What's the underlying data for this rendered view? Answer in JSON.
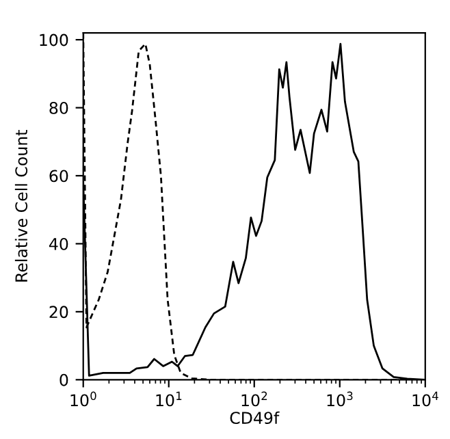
{
  "chart_data": {
    "type": "line",
    "xlabel": "CD49f",
    "ylabel": "Relative Cell Count",
    "log": "x",
    "grid": false,
    "legend": false,
    "marker": "none",
    "xlim": [
      1,
      10000
    ],
    "xticks": [
      {
        "value": 1,
        "label": "10$^{0}$"
      },
      {
        "value": 10,
        "label": "10$^{1}$"
      },
      {
        "value": 100,
        "label": "10$^{2}$"
      },
      {
        "value": 1000,
        "label": "10$^{3}$"
      },
      {
        "value": 10000,
        "label": "10$^{4}$"
      }
    ],
    "ylim": [
      0,
      102
    ],
    "yticks": [
      0,
      20,
      40,
      60,
      80,
      100
    ],
    "series": [
      {
        "color": "#000000",
        "line_style": "dashed",
        "x": [
          1,
          1.09,
          1.52,
          1.93,
          2.17,
          2.76,
          3.3,
          3.72,
          4.46,
          5.33,
          6.0,
          7.0,
          8.1,
          9.7,
          11.6,
          13.8,
          18.6,
          30,
          100,
          1000,
          10000
        ],
        "values": [
          102,
          15.4,
          23.6,
          31.7,
          38.6,
          53,
          69.5,
          79,
          96.7,
          98.8,
          92.7,
          76.4,
          60,
          23.6,
          7.3,
          2,
          0.4,
          0,
          0,
          0,
          0
        ]
      },
      {
        "color": "#000000",
        "line_style": "solid",
        "x": [
          1,
          1.17,
          1.71,
          3.5,
          4.2,
          5.65,
          6.76,
          8.6,
          10.9,
          12.7,
          15.5,
          19.1,
          26.8,
          33.8,
          45.7,
          56.7,
          65.5,
          79.7,
          91.5,
          105,
          122,
          142,
          174,
          196,
          216,
          238,
          258,
          301,
          348,
          446,
          500,
          611,
          713,
          822,
          906,
          1020,
          1150,
          1460,
          1650,
          1860,
          2090,
          2500,
          3160,
          4270,
          6160,
          10000
        ],
        "values": [
          58,
          1.2,
          2,
          2,
          3.3,
          3.7,
          6.1,
          4,
          5.3,
          4,
          7,
          7.3,
          15.4,
          19.5,
          21.5,
          34.7,
          28.4,
          35.8,
          47.7,
          42.3,
          46.7,
          59.5,
          64.6,
          91.3,
          85.9,
          93.4,
          83.2,
          67.6,
          73.5,
          60.8,
          72.4,
          79.4,
          73,
          93.4,
          88.6,
          98.8,
          81.8,
          67,
          64.2,
          43.9,
          23.6,
          10,
          3.3,
          0.8,
          0.3,
          0
        ]
      }
    ]
  }
}
